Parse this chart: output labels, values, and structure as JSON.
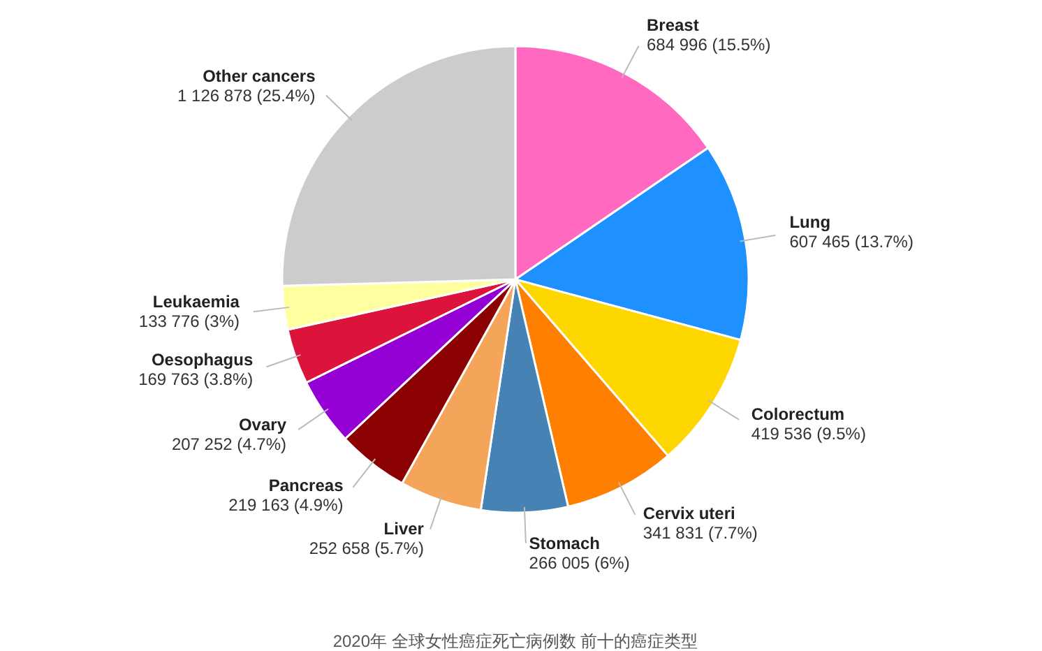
{
  "chart_data": {
    "type": "pie",
    "title": "2020年 全球女性癌症死亡病例数 前十的癌症类型",
    "categories": [
      "Breast",
      "Lung",
      "Colorectum",
      "Cervix uteri",
      "Stomach",
      "Liver",
      "Pancreas",
      "Ovary",
      "Oesophagus",
      "Leukaemia",
      "Other cancers"
    ],
    "values": [
      684996,
      607465,
      419536,
      341831,
      266005,
      252658,
      219163,
      207252,
      169763,
      133776,
      1126878
    ],
    "value_labels": [
      "684 996 (15.5%)",
      "607 465 (13.7%)",
      "419 536 (9.5%)",
      "341 831 (7.7%)",
      "266 005 (6%)",
      "252 658 (5.7%)",
      "219 163 (4.9%)",
      "207 252 (4.7%)",
      "169 763 (3.8%)",
      "133 776 (3%)",
      "1 126 878 (25.4%)"
    ],
    "colors": [
      "#ff69c0",
      "#1e90ff",
      "#ffd700",
      "#ff7f00",
      "#4682b4",
      "#f4a55a",
      "#8b0000",
      "#9400d3",
      "#dc143c",
      "#ffffa0",
      "#cccccc"
    ]
  }
}
